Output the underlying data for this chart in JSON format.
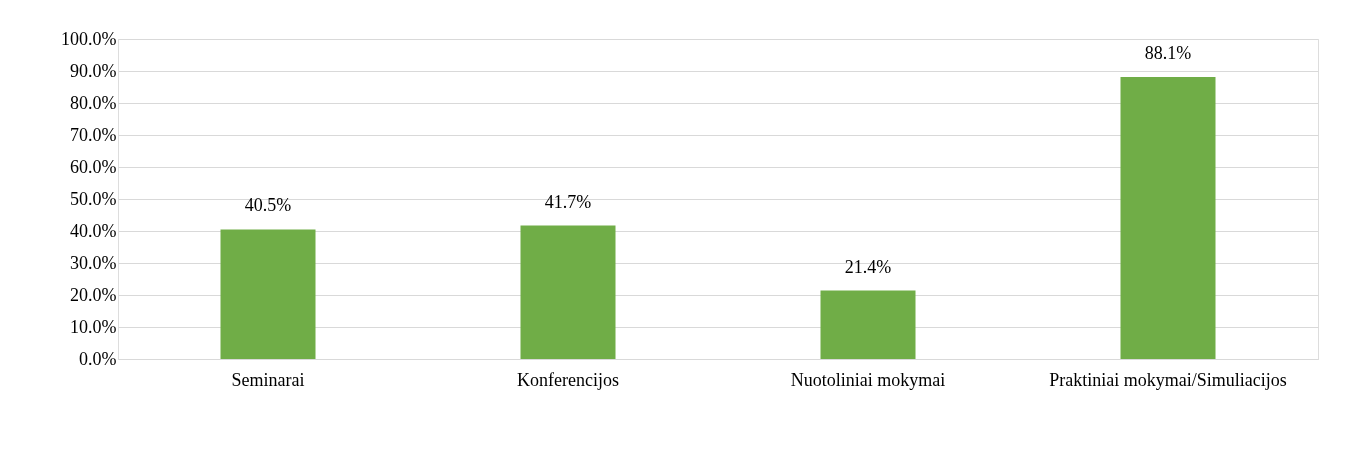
{
  "chart_data": {
    "type": "bar",
    "categories": [
      "Seminarai",
      "Konferencijos",
      "Nuotoliniai mokymai",
      "Praktiniai mokymai/Simuliacijos"
    ],
    "values": [
      40.5,
      41.7,
      21.4,
      88.1
    ],
    "value_labels": [
      "40.5%",
      "41.7%",
      "21.4%",
      "88.1%"
    ],
    "color": "#70ad47",
    "ylim": [
      0,
      100
    ],
    "yticks": [
      {
        "value": 0,
        "label": "0.0%"
      },
      {
        "value": 10,
        "label": "10.0%"
      },
      {
        "value": 20,
        "label": "20.0%"
      },
      {
        "value": 30,
        "label": "30.0%"
      },
      {
        "value": 40,
        "label": "40.0%"
      },
      {
        "value": 50,
        "label": "50.0%"
      },
      {
        "value": 60,
        "label": "60.0%"
      },
      {
        "value": 70,
        "label": "70.0%"
      },
      {
        "value": 80,
        "label": "80.0%"
      },
      {
        "value": 90,
        "label": "90.0%"
      },
      {
        "value": 100,
        "label": "100.0%"
      }
    ],
    "grid": "y"
  }
}
